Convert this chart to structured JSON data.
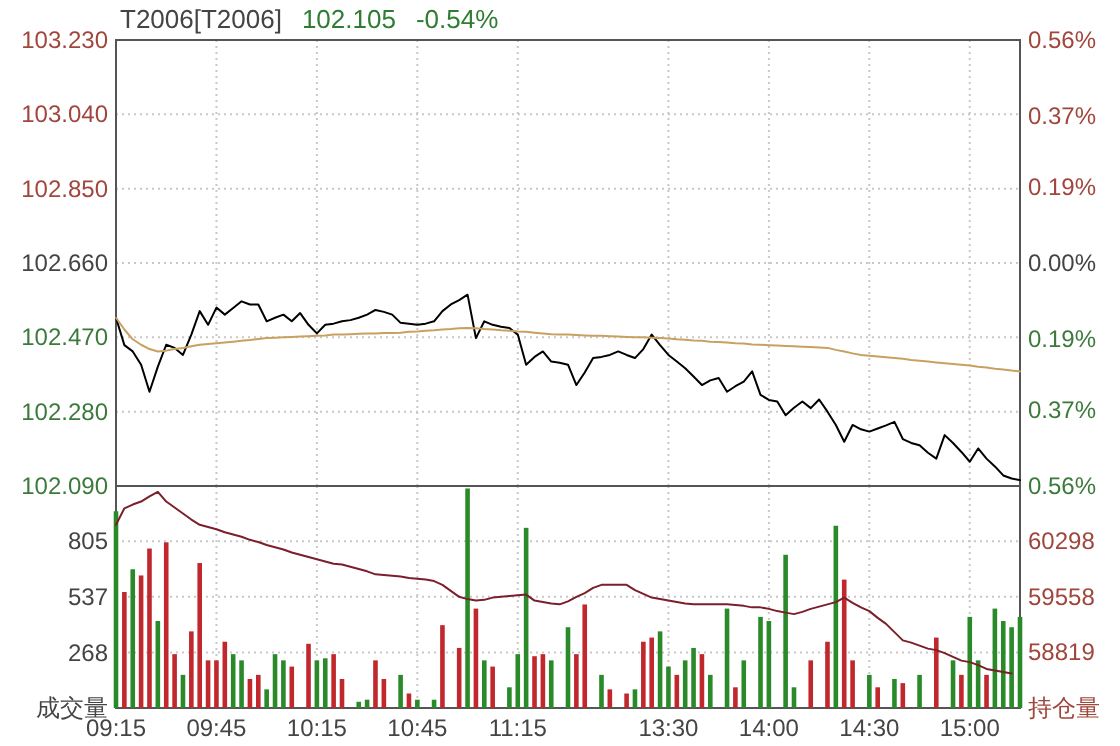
{
  "chart_data": [
    {
      "type": "line",
      "title": "T2006[T2006]",
      "annotations": [
        "102.105",
        "-0.54%"
      ],
      "categories": [
        null,
        null,
        null,
        null,
        null,
        null,
        null,
        null,
        null,
        null,
        null,
        null,
        null,
        null,
        null,
        null,
        null,
        null,
        null,
        null,
        null,
        null,
        null,
        null,
        null,
        null,
        null,
        null,
        null,
        null,
        null,
        null,
        null,
        null,
        null,
        null,
        null,
        null,
        null,
        null,
        null,
        null,
        null,
        null,
        null,
        null,
        null,
        null,
        null,
        null,
        null,
        null,
        null,
        null,
        null,
        null,
        null,
        null,
        null,
        null,
        null,
        null,
        null,
        null,
        null,
        null,
        null,
        null,
        null,
        null,
        null,
        null,
        null,
        null,
        null,
        null,
        null,
        null,
        null,
        null,
        null,
        null,
        null,
        null,
        null,
        null,
        null,
        null,
        null,
        null,
        null,
        null,
        null,
        null,
        null,
        null,
        null,
        null,
        null,
        null,
        null,
        null,
        null,
        null,
        null,
        null,
        null,
        null,
        null
      ],
      "ylim": [
        102.09,
        103.23
      ],
      "yticks": [
        {
          "value": 102.09,
          "label": "102.090"
        },
        {
          "value": 102.28,
          "label": "102.280"
        },
        {
          "value": 102.47,
          "label": "102.470"
        },
        {
          "value": 102.66,
          "label": "102.660"
        },
        {
          "value": 102.85,
          "label": "102.850"
        },
        {
          "value": 103.04,
          "label": "103.040"
        },
        {
          "value": 103.23,
          "label": "103.230"
        }
      ],
      "y2lim": [
        -0.56,
        0.56
      ],
      "y2ticks": [
        {
          "value": -0.56,
          "label": "0.56%"
        },
        {
          "value": -0.37,
          "label": "0.37%"
        },
        {
          "value": -0.19,
          "label": "0.19%"
        },
        {
          "value": 0,
          "label": "0.00%"
        },
        {
          "value": 0.19,
          "label": "0.19%"
        },
        {
          "value": 0.37,
          "label": "0.37%"
        },
        {
          "value": 0.56,
          "label": "0.56%"
        }
      ],
      "grid": true,
      "tick_labels": "y",
      "series": [
        {
          "color": "#000000",
          "values": [
            102.52,
            102.45,
            102.434,
            102.4,
            102.331,
            102.395,
            102.451,
            102.443,
            102.425,
            102.477,
            102.537,
            102.502,
            102.546,
            102.528,
            102.545,
            102.562,
            102.554,
            102.554,
            102.511,
            102.52,
            102.528,
            102.511,
            102.532,
            102.502,
            102.48,
            102.502,
            102.505,
            102.511,
            102.514,
            102.52,
            102.528,
            102.54,
            102.535,
            102.528,
            102.507,
            102.505,
            102.502,
            102.505,
            102.511,
            102.537,
            102.554,
            102.565,
            102.579,
            102.468,
            102.511,
            102.502,
            102.497,
            102.494,
            102.477,
            102.4,
            102.42,
            102.434,
            102.408,
            102.405,
            102.4,
            102.348,
            102.38,
            102.417,
            102.42,
            102.425,
            102.434,
            102.425,
            102.417,
            102.44,
            102.477,
            102.45,
            102.425,
            102.408,
            102.391,
            102.37,
            102.348,
            102.36,
            102.366,
            102.331,
            102.345,
            102.357,
            102.383,
            102.323,
            102.31,
            102.306,
            102.271,
            102.29,
            102.306,
            102.289,
            102.311,
            102.28,
            102.246,
            102.203,
            102.246,
            102.235,
            102.229,
            102.237,
            102.245,
            102.254,
            102.21,
            102.2,
            102.194,
            102.175,
            102.16,
            102.22,
            102.2,
            102.177,
            102.152,
            102.186,
            102.16,
            102.14,
            102.117,
            102.109,
            102.105
          ]
        },
        {
          "color": "#c8a060",
          "values": [
            102.52,
            102.49,
            102.465,
            102.451,
            102.44,
            102.434,
            102.436,
            102.44,
            102.443,
            102.447,
            102.451,
            102.453,
            102.455,
            102.457,
            102.459,
            102.461,
            102.463,
            102.466,
            102.468,
            102.469,
            102.47,
            102.471,
            102.472,
            102.473,
            102.474,
            102.475,
            102.477,
            102.477,
            102.478,
            102.479,
            102.48,
            102.48,
            102.481,
            102.481,
            102.482,
            102.484,
            102.485,
            102.487,
            102.488,
            102.49,
            102.491,
            102.493,
            102.494,
            102.493,
            102.491,
            102.49,
            102.488,
            102.487,
            102.485,
            102.484,
            102.482,
            102.48,
            102.478,
            102.477,
            102.477,
            102.476,
            102.475,
            102.474,
            102.474,
            102.473,
            102.472,
            102.471,
            102.47,
            102.47,
            102.469,
            102.468,
            102.467,
            102.465,
            102.464,
            102.462,
            102.461,
            102.459,
            102.458,
            102.457,
            102.455,
            102.454,
            102.452,
            102.451,
            102.45,
            102.449,
            102.448,
            102.447,
            102.446,
            102.445,
            102.444,
            102.443,
            102.438,
            102.434,
            102.429,
            102.425,
            102.423,
            102.421,
            102.419,
            102.417,
            102.415,
            102.412,
            102.41,
            102.408,
            102.406,
            102.404,
            102.402,
            102.4,
            102.398,
            102.395,
            102.393,
            102.39,
            102.388,
            102.385,
            102.383
          ]
        }
      ]
    },
    {
      "type": "bar",
      "categories": [
        "09:15",
        null,
        null,
        null,
        null,
        null,
        null,
        null,
        null,
        null,
        null,
        null,
        "09:45",
        null,
        null,
        null,
        null,
        null,
        null,
        null,
        null,
        null,
        null,
        null,
        "10:15",
        null,
        null,
        null,
        null,
        null,
        null,
        null,
        null,
        null,
        null,
        null,
        "10:45",
        null,
        null,
        null,
        null,
        null,
        null,
        null,
        null,
        null,
        null,
        null,
        "11:15",
        null,
        null,
        null,
        null,
        null,
        null,
        null,
        null,
        null,
        null,
        null,
        null,
        null,
        null,
        null,
        null,
        null,
        "13:30",
        null,
        null,
        null,
        null,
        null,
        null,
        null,
        null,
        null,
        null,
        null,
        "14:00",
        null,
        null,
        null,
        null,
        null,
        null,
        null,
        null,
        null,
        null,
        null,
        "14:30",
        null,
        null,
        null,
        null,
        null,
        null,
        null,
        null,
        null,
        null,
        null,
        "15:00",
        null,
        null,
        null,
        null,
        null,
        null
      ],
      "ylim": [
        0,
        1072
      ],
      "yticks": [
        {
          "value": 0,
          "label": "成交量"
        },
        268,
        537,
        805
      ],
      "y2lim": [
        58079,
        61037
      ],
      "y2ticks": [
        {
          "value": 58079,
          "label": "持仓量"
        },
        58819,
        59558,
        60298
      ],
      "grid": true,
      "series": [
        {
          "color": "#c0282d",
          "values": [
            null,
            560,
            null,
            640,
            770,
            null,
            800,
            260,
            null,
            370,
            700,
            230,
            230,
            320,
            null,
            null,
            140,
            160,
            null,
            null,
            null,
            200,
            null,
            310,
            null,
            null,
            260,
            140,
            null,
            null,
            null,
            230,
            140,
            null,
            null,
            70,
            null,
            null,
            null,
            400,
            null,
            290,
            null,
            480,
            null,
            200,
            null,
            null,
            null,
            null,
            250,
            260,
            null,
            null,
            null,
            260,
            500,
            null,
            null,
            90,
            null,
            70,
            null,
            320,
            340,
            null,
            null,
            160,
            null,
            null,
            260,
            null,
            null,
            null,
            100,
            null,
            null,
            null,
            null,
            null,
            null,
            null,
            null,
            230,
            null,
            320,
            null,
            620,
            230,
            null,
            null,
            100,
            null,
            null,
            120,
            null,
            null,
            null,
            340,
            null,
            null,
            160,
            null,
            null,
            160,
            null,
            null,
            null,
            null
          ]
        },
        {
          "color": "#2a8a2a",
          "values": [
            950,
            null,
            670,
            null,
            null,
            420,
            null,
            null,
            160,
            null,
            null,
            null,
            null,
            null,
            260,
            230,
            null,
            null,
            90,
            260,
            230,
            null,
            null,
            null,
            230,
            240,
            null,
            null,
            null,
            30,
            40,
            null,
            null,
            null,
            160,
            null,
            40,
            null,
            40,
            null,
            null,
            null,
            1060,
            null,
            230,
            null,
            null,
            100,
            260,
            870,
            null,
            null,
            230,
            null,
            390,
            null,
            null,
            null,
            160,
            null,
            null,
            null,
            90,
            null,
            null,
            370,
            200,
            null,
            230,
            290,
            null,
            160,
            null,
            480,
            null,
            230,
            null,
            440,
            420,
            null,
            740,
            100,
            null,
            null,
            null,
            null,
            880,
            null,
            null,
            null,
            160,
            null,
            null,
            140,
            null,
            null,
            160,
            null,
            null,
            null,
            230,
            null,
            440,
            230,
            null,
            480,
            420,
            390,
            440
          ]
        },
        {
          "type": "line",
          "axis": "y2",
          "color": "#7a1f2b",
          "values": [
            60520,
            60740,
            60790,
            60830,
            60900,
            60960,
            60830,
            60750,
            60670,
            60590,
            60520,
            60490,
            60460,
            60420,
            60390,
            60360,
            60320,
            60290,
            60250,
            60220,
            60190,
            60150,
            60120,
            60090,
            60060,
            60030,
            60000,
            59990,
            59960,
            59930,
            59900,
            59860,
            59850,
            59840,
            59830,
            59810,
            59800,
            59790,
            59770,
            59720,
            59640,
            59560,
            59530,
            59510,
            59520,
            59550,
            59560,
            59570,
            59580,
            59590,
            59510,
            59490,
            59470,
            59460,
            59500,
            59560,
            59610,
            59680,
            59720,
            59720,
            59720,
            59720,
            59650,
            59600,
            59550,
            59530,
            59510,
            59490,
            59470,
            59460,
            59460,
            59460,
            59460,
            59460,
            59450,
            59440,
            59420,
            59420,
            59400,
            59370,
            59350,
            59330,
            59360,
            59400,
            59430,
            59460,
            59490,
            59550,
            59480,
            59420,
            59370,
            59280,
            59200,
            59090,
            58980,
            58950,
            58910,
            58870,
            58850,
            58810,
            58760,
            58710,
            58690,
            58650,
            58600,
            58580,
            58560,
            58540,
            null
          ]
        }
      ]
    }
  ]
}
